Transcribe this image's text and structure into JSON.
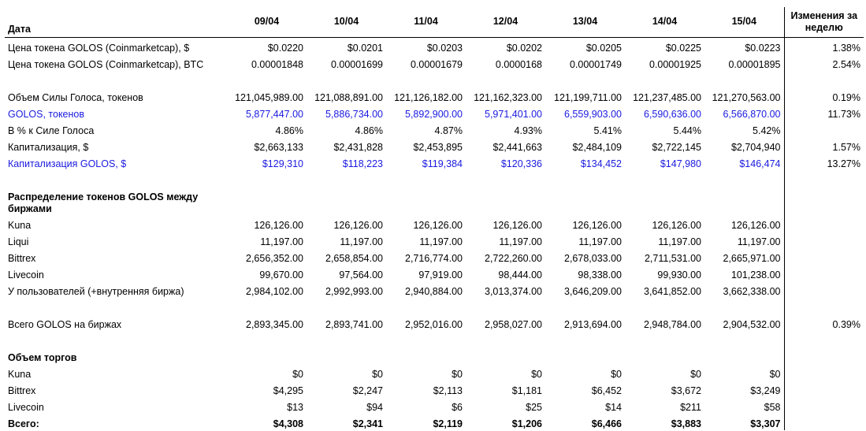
{
  "header": {
    "date_label": "Дата",
    "days": [
      "09/04",
      "10/04",
      "11/04",
      "12/04",
      "13/04",
      "14/04",
      "15/04"
    ],
    "change_label": "Изменения за неделю"
  },
  "rows": {
    "price_usd": {
      "label": "Цена токена GOLOS (Coinmarketcap), $",
      "values": [
        "$0.0220",
        "$0.0201",
        "$0.0203",
        "$0.0202",
        "$0.0205",
        "$0.0225",
        "$0.0223"
      ],
      "change": "1.38%"
    },
    "price_btc": {
      "label": "Цена токена GOLOS (Coinmarketcap), BTC",
      "values": [
        "0.00001848",
        "0.00001699",
        "0.00001679",
        "0.0000168",
        "0.00001749",
        "0.00001925",
        "0.00001895"
      ],
      "change": "2.54%"
    },
    "power": {
      "label": "Объем Силы Голоса, токенов",
      "values": [
        "121,045,989.00",
        "121,088,891.00",
        "121,126,182.00",
        "121,162,323.00",
        "121,199,711.00",
        "121,237,485.00",
        "121,270,563.00"
      ],
      "change": "0.19%"
    },
    "golos": {
      "label": "GOLOS, токенов",
      "values": [
        "5,877,447.00",
        "5,886,734.00",
        "5,892,900.00",
        "5,971,401.00",
        "6,559,903.00",
        "6,590,636.00",
        "6,566,870.00"
      ],
      "change": "11.73%"
    },
    "pct": {
      "label": "В % к Силе Голоса",
      "values": [
        "4.86%",
        "4.86%",
        "4.87%",
        "4.93%",
        "5.41%",
        "5.44%",
        "5.42%"
      ],
      "change": ""
    },
    "cap": {
      "label": "Капитализация, $",
      "values": [
        "$2,663,133",
        "$2,431,828",
        "$2,453,895",
        "$2,441,663",
        "$2,484,109",
        "$2,722,145",
        "$2,704,940"
      ],
      "change": "1.57%"
    },
    "cap_golos": {
      "label": "Капитализация GOLOS, $",
      "values": [
        "$129,310",
        "$118,223",
        "$119,384",
        "$120,336",
        "$134,452",
        "$147,980",
        "$146,474"
      ],
      "change": "13.27%"
    },
    "dist_title": {
      "label": "Распределение токенов GOLOS между биржами"
    },
    "kuna": {
      "label": "Kuna",
      "values": [
        "126,126.00",
        "126,126.00",
        "126,126.00",
        "126,126.00",
        "126,126.00",
        "126,126.00",
        "126,126.00"
      ],
      "change": ""
    },
    "liqui": {
      "label": "Liqui",
      "values": [
        "11,197.00",
        "11,197.00",
        "11,197.00",
        "11,197.00",
        "11,197.00",
        "11,197.00",
        "11,197.00"
      ],
      "change": ""
    },
    "bittrex": {
      "label": "Bittrex",
      "values": [
        "2,656,352.00",
        "2,658,854.00",
        "2,716,774.00",
        "2,722,260.00",
        "2,678,033.00",
        "2,711,531.00",
        "2,665,971.00"
      ],
      "change": ""
    },
    "livecoin": {
      "label": "Livecoin",
      "values": [
        "99,670.00",
        "97,564.00",
        "97,919.00",
        "98,444.00",
        "98,338.00",
        "99,930.00",
        "101,238.00"
      ],
      "change": ""
    },
    "users": {
      "label": "У пользователей (+внутренняя биржа)",
      "values": [
        "2,984,102.00",
        "2,992,993.00",
        "2,940,884.00",
        "3,013,374.00",
        "3,646,209.00",
        "3,641,852.00",
        "3,662,338.00"
      ],
      "change": ""
    },
    "total_ex": {
      "label": "Всего GOLOS на биржах",
      "values": [
        "2,893,345.00",
        "2,893,741.00",
        "2,952,016.00",
        "2,958,027.00",
        "2,913,694.00",
        "2,948,784.00",
        "2,904,532.00"
      ],
      "change": "0.39%"
    },
    "vol_title": {
      "label": "Объем торгов"
    },
    "vol_kuna": {
      "label": "Kuna",
      "values": [
        "$0",
        "$0",
        "$0",
        "$0",
        "$0",
        "$0",
        "$0"
      ],
      "change": ""
    },
    "vol_bittrex": {
      "label": "Bittrex",
      "values": [
        "$4,295",
        "$2,247",
        "$2,113",
        "$1,181",
        "$6,452",
        "$3,672",
        "$3,249"
      ],
      "change": ""
    },
    "vol_livecoin": {
      "label": "Livecoin",
      "values": [
        "$13",
        "$94",
        "$6",
        "$25",
        "$14",
        "$211",
        "$58"
      ],
      "change": ""
    },
    "vol_total": {
      "label": "Всего:",
      "values": [
        "$4,308",
        "$2,341",
        "$2,119",
        "$1,206",
        "$6,466",
        "$3,883",
        "$3,307"
      ],
      "change": ""
    }
  }
}
